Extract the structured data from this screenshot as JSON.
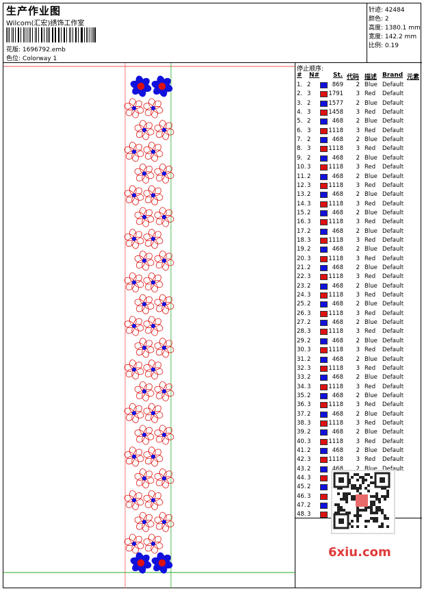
{
  "header": {
    "title": "生产作业图",
    "company": "Wilcom(汇宏)绣饰工作室",
    "file_label": "花版:",
    "file_value": "1696792.emb",
    "colorway_label": "色位:",
    "colorway_value": "Colorway 1"
  },
  "stats": [
    {
      "label": "针迹:",
      "value": "42484"
    },
    {
      "label": "颜色:",
      "value": "2"
    },
    {
      "label": "高度:",
      "value": "1380.1 mm"
    },
    {
      "label": "宽度:",
      "value": "142.2 mm"
    },
    {
      "label": "比例:",
      "value": "0.19"
    }
  ],
  "stop_sequence": {
    "label": "停止顺序:",
    "headers": [
      "#",
      "N#",
      "St.",
      "代码",
      "描述",
      "Brand",
      "元素"
    ],
    "rows": [
      {
        "n": "1.",
        "c": "2",
        "st": "869",
        "code": "2",
        "desc": "Blue",
        "brand": "Default"
      },
      {
        "n": "2.",
        "c": "3",
        "st": "1791",
        "code": "3",
        "desc": "Red",
        "brand": "Default"
      },
      {
        "n": "3.",
        "c": "2",
        "st": "1577",
        "code": "2",
        "desc": "Blue",
        "brand": "Default"
      },
      {
        "n": "4.",
        "c": "3",
        "st": "1458",
        "code": "3",
        "desc": "Red",
        "brand": "Default"
      },
      {
        "n": "5.",
        "c": "2",
        "st": "468",
        "code": "2",
        "desc": "Blue",
        "brand": "Default"
      },
      {
        "n": "6.",
        "c": "3",
        "st": "1118",
        "code": "3",
        "desc": "Red",
        "brand": "Default"
      },
      {
        "n": "7.",
        "c": "2",
        "st": "468",
        "code": "2",
        "desc": "Blue",
        "brand": "Default"
      },
      {
        "n": "8.",
        "c": "3",
        "st": "1118",
        "code": "3",
        "desc": "Red",
        "brand": "Default"
      },
      {
        "n": "9.",
        "c": "2",
        "st": "468",
        "code": "2",
        "desc": "Blue",
        "brand": "Default"
      },
      {
        "n": "10.",
        "c": "3",
        "st": "1118",
        "code": "3",
        "desc": "Red",
        "brand": "Default"
      },
      {
        "n": "11.",
        "c": "2",
        "st": "468",
        "code": "2",
        "desc": "Blue",
        "brand": "Default"
      },
      {
        "n": "12.",
        "c": "3",
        "st": "1118",
        "code": "3",
        "desc": "Red",
        "brand": "Default"
      },
      {
        "n": "13.",
        "c": "2",
        "st": "468",
        "code": "2",
        "desc": "Blue",
        "brand": "Default"
      },
      {
        "n": "14.",
        "c": "3",
        "st": "1118",
        "code": "3",
        "desc": "Red",
        "brand": "Default"
      },
      {
        "n": "15.",
        "c": "2",
        "st": "468",
        "code": "2",
        "desc": "Blue",
        "brand": "Default"
      },
      {
        "n": "16.",
        "c": "3",
        "st": "1118",
        "code": "3",
        "desc": "Red",
        "brand": "Default"
      },
      {
        "n": "17.",
        "c": "2",
        "st": "468",
        "code": "2",
        "desc": "Blue",
        "brand": "Default"
      },
      {
        "n": "18.",
        "c": "3",
        "st": "1118",
        "code": "3",
        "desc": "Red",
        "brand": "Default"
      },
      {
        "n": "19.",
        "c": "2",
        "st": "468",
        "code": "2",
        "desc": "Blue",
        "brand": "Default"
      },
      {
        "n": "20.",
        "c": "3",
        "st": "1118",
        "code": "3",
        "desc": "Red",
        "brand": "Default"
      },
      {
        "n": "21.",
        "c": "2",
        "st": "468",
        "code": "2",
        "desc": "Blue",
        "brand": "Default"
      },
      {
        "n": "22.",
        "c": "3",
        "st": "1118",
        "code": "3",
        "desc": "Red",
        "brand": "Default"
      },
      {
        "n": "23.",
        "c": "2",
        "st": "468",
        "code": "2",
        "desc": "Blue",
        "brand": "Default"
      },
      {
        "n": "24.",
        "c": "3",
        "st": "1118",
        "code": "3",
        "desc": "Red",
        "brand": "Default"
      },
      {
        "n": "25.",
        "c": "2",
        "st": "468",
        "code": "2",
        "desc": "Blue",
        "brand": "Default"
      },
      {
        "n": "26.",
        "c": "3",
        "st": "1118",
        "code": "3",
        "desc": "Red",
        "brand": "Default"
      },
      {
        "n": "27.",
        "c": "2",
        "st": "468",
        "code": "2",
        "desc": "Blue",
        "brand": "Default"
      },
      {
        "n": "28.",
        "c": "3",
        "st": "1118",
        "code": "3",
        "desc": "Red",
        "brand": "Default"
      },
      {
        "n": "29.",
        "c": "2",
        "st": "468",
        "code": "2",
        "desc": "Blue",
        "brand": "Default"
      },
      {
        "n": "30.",
        "c": "3",
        "st": "1118",
        "code": "3",
        "desc": "Red",
        "brand": "Default"
      },
      {
        "n": "31.",
        "c": "2",
        "st": "468",
        "code": "2",
        "desc": "Blue",
        "brand": "Default"
      },
      {
        "n": "32.",
        "c": "3",
        "st": "1118",
        "code": "3",
        "desc": "Red",
        "brand": "Default"
      },
      {
        "n": "33.",
        "c": "2",
        "st": "468",
        "code": "2",
        "desc": "Blue",
        "brand": "Default"
      },
      {
        "n": "34.",
        "c": "3",
        "st": "1118",
        "code": "3",
        "desc": "Red",
        "brand": "Default"
      },
      {
        "n": "35.",
        "c": "2",
        "st": "468",
        "code": "2",
        "desc": "Blue",
        "brand": "Default"
      },
      {
        "n": "36.",
        "c": "3",
        "st": "1118",
        "code": "3",
        "desc": "Red",
        "brand": "Default"
      },
      {
        "n": "37.",
        "c": "2",
        "st": "468",
        "code": "2",
        "desc": "Blue",
        "brand": "Default"
      },
      {
        "n": "38.",
        "c": "3",
        "st": "1118",
        "code": "3",
        "desc": "Red",
        "brand": "Default"
      },
      {
        "n": "39.",
        "c": "2",
        "st": "468",
        "code": "2",
        "desc": "Blue",
        "brand": "Default"
      },
      {
        "n": "40.",
        "c": "3",
        "st": "1118",
        "code": "3",
        "desc": "Red",
        "brand": "Default"
      },
      {
        "n": "41.",
        "c": "2",
        "st": "468",
        "code": "2",
        "desc": "Blue",
        "brand": "Default"
      },
      {
        "n": "42.",
        "c": "3",
        "st": "1118",
        "code": "3",
        "desc": "Red",
        "brand": "Default"
      },
      {
        "n": "43.",
        "c": "2",
        "st": "468",
        "code": "2",
        "desc": "Blue",
        "brand": "Default"
      },
      {
        "n": "44.",
        "c": "3",
        "st": "",
        "code": "",
        "desc": "",
        "brand": ""
      },
      {
        "n": "45.",
        "c": "2",
        "st": "",
        "code": "",
        "desc": "",
        "brand": ""
      },
      {
        "n": "46.",
        "c": "3",
        "st": "",
        "code": "",
        "desc": "",
        "brand": ""
      },
      {
        "n": "47.",
        "c": "2",
        "st": "",
        "code": "",
        "desc": "",
        "brand": ""
      },
      {
        "n": "48.",
        "c": "3",
        "st": "",
        "code": "",
        "desc": "",
        "brand": ""
      }
    ]
  },
  "colors": {
    "blue": "#1111dd",
    "red": "#dd1111"
  },
  "watermark": "6xiu.com"
}
